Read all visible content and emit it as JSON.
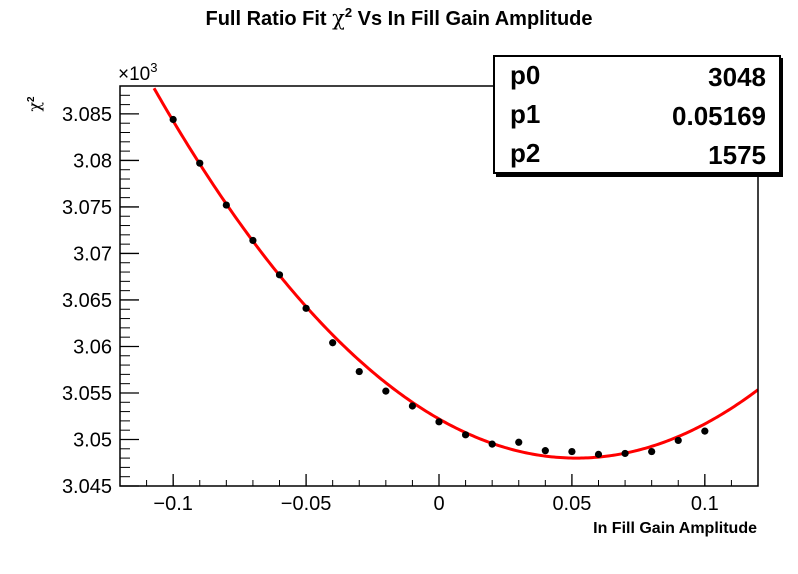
{
  "chart_data": {
    "type": "scatter",
    "title": "Full Ratio Fit χ² Vs In Fill Gain Amplitude",
    "title_parts": {
      "pre": "Full Ratio Fit ",
      "chi": "χ",
      "sup": "2",
      "post": " Vs In Fill Gain Amplitude"
    },
    "xlabel": "In Fill Gain Amplitude",
    "ylabel": "χ²",
    "ylabel_parts": {
      "chi": "χ",
      "sup": "2"
    },
    "y_multiplier": {
      "base": "×10",
      "exp": "3"
    },
    "xlim": [
      -0.12,
      0.12
    ],
    "ylim": [
      3.045,
      3.088
    ],
    "x_ticks": [
      -0.1,
      -0.05,
      0,
      0.05,
      0.1
    ],
    "x_tick_labels": [
      "−0.1",
      "−0.05",
      "0",
      "0.05",
      "0.1"
    ],
    "y_ticks": [
      3.045,
      3.05,
      3.055,
      3.06,
      3.065,
      3.07,
      3.075,
      3.08,
      3.085
    ],
    "y_tick_labels": [
      "3.045",
      "3.05",
      "3.055",
      "3.06",
      "3.065",
      "3.07",
      "3.075",
      "3.08",
      "3.085"
    ],
    "grid": false,
    "points": {
      "x": [
        -0.1,
        -0.09,
        -0.08,
        -0.07,
        -0.06,
        -0.05,
        -0.04,
        -0.03,
        -0.02,
        -0.01,
        0,
        0.01,
        0.02,
        0.03,
        0.04,
        0.05,
        0.06,
        0.07,
        0.08,
        0.09,
        0.1
      ],
      "y": [
        3.0844,
        3.0797,
        3.0752,
        3.0714,
        3.0677,
        3.0641,
        3.0604,
        3.0573,
        3.0552,
        3.0536,
        3.0519,
        3.0505,
        3.0495,
        3.0497,
        3.0488,
        3.0487,
        3.0484,
        3.0485,
        3.0487,
        3.0499,
        3.0509
      ],
      "color": "#000000"
    },
    "fit": {
      "type": "parabola",
      "formula": "(p0 + p2*(x-p1)^2)/1000",
      "params": [
        {
          "name": "p0",
          "value": "3048"
        },
        {
          "name": "p1",
          "value": "0.05169"
        },
        {
          "name": "p2",
          "value": "1575"
        }
      ],
      "color": "#ff0000",
      "x_range": [
        -0.12,
        0.12
      ]
    },
    "stats_box_position": "top-right"
  }
}
